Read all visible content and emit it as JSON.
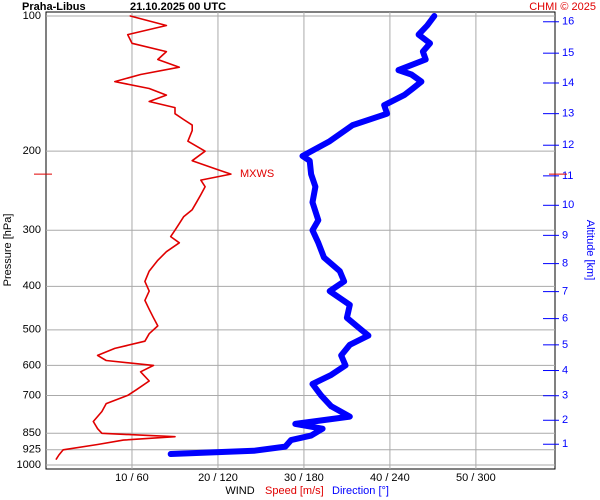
{
  "chart_data": {
    "type": "line",
    "title": "Praha-Libus",
    "subtitle": "21.10.2025 00 UTC",
    "credit": "CHMI © 2025",
    "x_label": "WIND",
    "y_label": "Pressure [hPa]",
    "y2_label": "Altitude [km]",
    "y_log": true,
    "grid": true,
    "ylim": [
      100,
      1000
    ],
    "yticks": [
      100,
      200,
      300,
      400,
      500,
      600,
      700,
      850,
      925,
      1000
    ],
    "xlim": [
      0,
      59.2
    ],
    "x2lim": [
      0,
      355.2
    ],
    "xticks": [
      {
        "value": 10,
        "label": "10 / 60"
      },
      {
        "value": 20,
        "label": "20 / 120"
      },
      {
        "value": 30,
        "label": "30 / 180"
      },
      {
        "value": 40,
        "label": "40 / 240"
      },
      {
        "value": 50,
        "label": "50 / 300"
      }
    ],
    "altitude_ticks": [
      {
        "km": 1,
        "hPa": 899
      },
      {
        "km": 2,
        "hPa": 795
      },
      {
        "km": 3,
        "hPa": 701
      },
      {
        "km": 4,
        "hPa": 616
      },
      {
        "km": 5,
        "hPa": 540
      },
      {
        "km": 6,
        "hPa": 472
      },
      {
        "km": 7,
        "hPa": 411
      },
      {
        "km": 8,
        "hPa": 356
      },
      {
        "km": 9,
        "hPa": 308
      },
      {
        "km": 10,
        "hPa": 264
      },
      {
        "km": 11,
        "hPa": 227
      },
      {
        "km": 12,
        "hPa": 194
      },
      {
        "km": 13,
        "hPa": 165
      },
      {
        "km": 14,
        "hPa": 141
      },
      {
        "km": 15,
        "hPa": 121
      },
      {
        "km": 16,
        "hPa": 103
      }
    ],
    "annotation": {
      "text": "MXWS",
      "pressure": 225,
      "color": "#e00000"
    },
    "series": [
      {
        "name": "Speed [m/s]",
        "color": "#e00000",
        "axis": "x",
        "width": 1.6,
        "pressure": [
          100,
          105,
          110,
          115,
          120,
          125,
          130,
          135,
          140,
          145,
          150,
          155,
          160,
          165,
          170,
          175,
          180,
          190,
          200,
          210,
          220,
          225,
          232,
          240,
          250,
          260,
          270,
          280,
          290,
          300,
          310,
          320,
          335,
          350,
          370,
          390,
          410,
          430,
          450,
          470,
          490,
          510,
          530,
          550,
          570,
          585,
          600,
          620,
          650,
          680,
          700,
          730,
          760,
          800,
          830,
          850,
          865,
          880,
          900,
          925,
          950,
          970
        ],
        "values": [
          9.8,
          14,
          9.5,
          10,
          14,
          13,
          15.5,
          11,
          8,
          12,
          14,
          12,
          15,
          15,
          16,
          17,
          17,
          16.5,
          18.5,
          17,
          20,
          21.5,
          18,
          18.5,
          18,
          17.5,
          17,
          16,
          15.5,
          15,
          14.5,
          15.5,
          14,
          13,
          12,
          11.5,
          12,
          11.5,
          12,
          12.5,
          13,
          12,
          11.5,
          8,
          6,
          7,
          12.5,
          11,
          12,
          10.5,
          9.5,
          7,
          6.5,
          5.5,
          6,
          6.5,
          15,
          9,
          6,
          2,
          1.5,
          1.2
        ]
      },
      {
        "name": "Direction [°]",
        "color": "#0000ff",
        "axis": "x2",
        "width": 6,
        "pressure": [
          100,
          105,
          110,
          115,
          120,
          125,
          132,
          135,
          140,
          145,
          150,
          158,
          165,
          175,
          190,
          205,
          210,
          225,
          240,
          260,
          285,
          300,
          320,
          345,
          370,
          390,
          410,
          440,
          470,
          500,
          515,
          540,
          570,
          600,
          630,
          660,
          700,
          740,
          780,
          810,
          830,
          860,
          880,
          910,
          930,
          945
        ],
        "values": [
          271,
          266,
          260,
          268,
          263,
          265,
          246,
          255,
          262,
          256,
          250,
          236,
          238,
          214,
          198,
          179,
          184,
          185,
          188,
          186,
          190,
          186,
          190,
          194,
          205,
          208,
          198,
          212,
          210,
          220,
          225,
          212,
          206,
          209,
          199,
          186,
          192,
          199,
          212,
          174,
          193,
          185,
          171,
          167,
          145,
          87
        ]
      }
    ]
  }
}
